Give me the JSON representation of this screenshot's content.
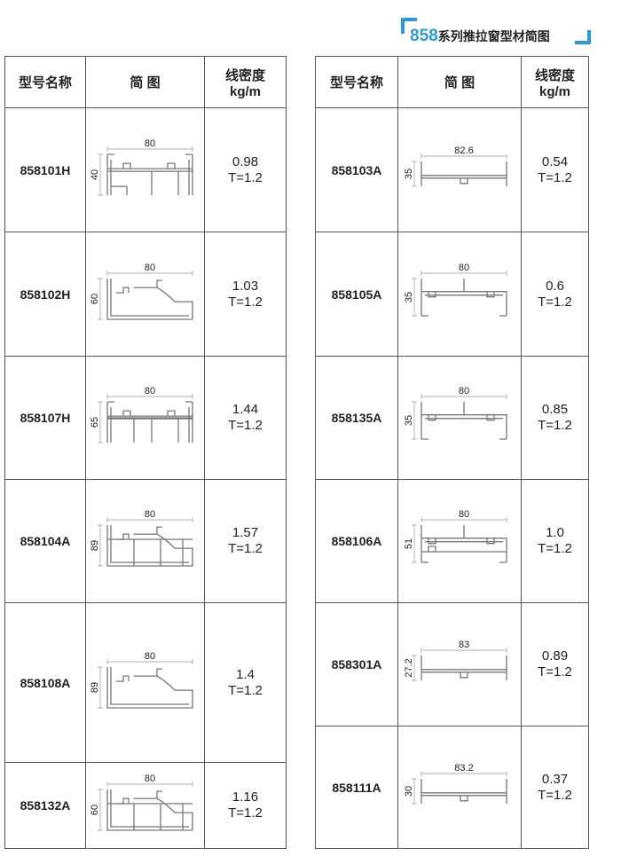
{
  "title": {
    "number": "858",
    "text": "系列推拉窗型材简图"
  },
  "headers": {
    "model": "型号名称",
    "figure": "简 图",
    "density_line1": "线密度",
    "density_line2": "kg/m"
  },
  "accent_color": "#2a9bd6",
  "left_rows": [
    {
      "model": "858101H",
      "width": "80",
      "height": "40",
      "density": "0.98",
      "thickness": "T=1.2",
      "kind": "frame2"
    },
    {
      "model": "858102H",
      "width": "80",
      "height": "60",
      "density": "1.03",
      "thickness": "T=1.2",
      "kind": "sash"
    },
    {
      "model": "858107H",
      "width": "80",
      "height": "65",
      "density": "1.44",
      "thickness": "T=1.2",
      "kind": "frame3"
    },
    {
      "model": "858104A",
      "width": "80",
      "height": "89",
      "density": "1.57",
      "thickness": "T=1.2",
      "kind": "step"
    },
    {
      "model": "858108A",
      "width": "80",
      "height": "89",
      "density": "1.4",
      "thickness": "T=1.2",
      "kind": "tall"
    },
    {
      "model": "858132A",
      "width": "80",
      "height": "60",
      "density": "1.16",
      "thickness": "T=1.2",
      "kind": "stair"
    }
  ],
  "right_rows": [
    {
      "model": "858103A",
      "width": "82.6",
      "height": "35",
      "density": "0.54",
      "thickness": "T=1.2",
      "kind": "flat"
    },
    {
      "model": "858105A",
      "width": "80",
      "height": "35",
      "density": "0.6",
      "thickness": "T=1.2",
      "kind": "mull"
    },
    {
      "model": "858135A",
      "width": "80",
      "height": "35",
      "density": "0.85",
      "thickness": "T=1.2",
      "kind": "mull"
    },
    {
      "model": "858106A",
      "width": "80",
      "height": "51",
      "density": "1.0",
      "thickness": "T=1.2",
      "kind": "box"
    },
    {
      "model": "858301A",
      "width": "83",
      "height": "27.2",
      "density": "0.89",
      "thickness": "T=1.2",
      "kind": "flat"
    },
    {
      "model": "858111A",
      "width": "83.2",
      "height": "30",
      "density": "0.37",
      "thickness": "T=1.2",
      "kind": "flat"
    }
  ]
}
